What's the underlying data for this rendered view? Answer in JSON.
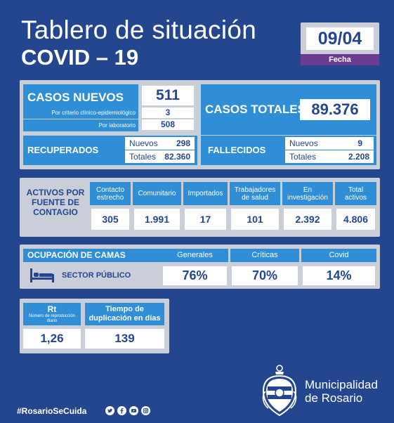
{
  "header": {
    "title_line1": "Tablero de situación",
    "title_line2": "COVID – 19",
    "date": "09/04",
    "date_label": "Fecha"
  },
  "casos": {
    "nuevos_label": "CASOS NUEVOS",
    "nuevos_value": "511",
    "criterio_label": "Por criterio clínico-epidemiológico",
    "criterio_value": "3",
    "laboratorio_label": "Por laboratorio",
    "laboratorio_value": "508",
    "totales_label": "CASOS TOTALES",
    "totales_value": "89.376"
  },
  "recuperados": {
    "label": "RECUPERADOS",
    "nuevos_label": "Nuevos",
    "nuevos_value": "298",
    "totales_label": "Totales",
    "totales_value": "82.360"
  },
  "fallecidos": {
    "label": "FALLECIDOS",
    "nuevos_label": "Nuevos",
    "nuevos_value": "9",
    "totales_label": "Totales",
    "totales_value": "2.208"
  },
  "activos": {
    "label": "ACTIVOS POR FUENTE DE CONTAGIO",
    "columns": [
      {
        "label": "Contacto estrecho",
        "value": "305"
      },
      {
        "label": "Comunitario",
        "value": "1.991"
      },
      {
        "label": "Importados",
        "value": "17"
      },
      {
        "label": "Trabajadores de salud",
        "value": "101"
      },
      {
        "label": "En investigación",
        "value": "2.392"
      },
      {
        "label": "Total activos",
        "value": "4.806"
      }
    ]
  },
  "ocupacion": {
    "label": "OCUPACIÓN DE CAMAS",
    "sector": "SECTOR PÚBLICO",
    "icon": "bed-icon",
    "columns": [
      {
        "label": "Generales",
        "value": "76%"
      },
      {
        "label": "Críticas",
        "value": "70%"
      },
      {
        "label": "Covid",
        "value": "14%"
      }
    ]
  },
  "rt": {
    "label": "Rt",
    "sublabel": "Número de reproducción diario",
    "value": "1,26"
  },
  "duplicacion": {
    "label": "Tiempo de duplicación en días",
    "value": "139"
  },
  "footer": {
    "hashtag": "#RosarioSeCuida",
    "social_icons": [
      "twitter-icon",
      "facebook-icon",
      "youtube-icon",
      "instagram-icon"
    ],
    "municipality_line1": "Municipalidad",
    "municipality_line2": "de Rosario"
  },
  "colors": {
    "background": "#23468f",
    "panel": "#c9ced8",
    "cell_blue": "#2f8ed6",
    "date_purple": "#6e3b93",
    "text_dark": "#23468f"
  }
}
